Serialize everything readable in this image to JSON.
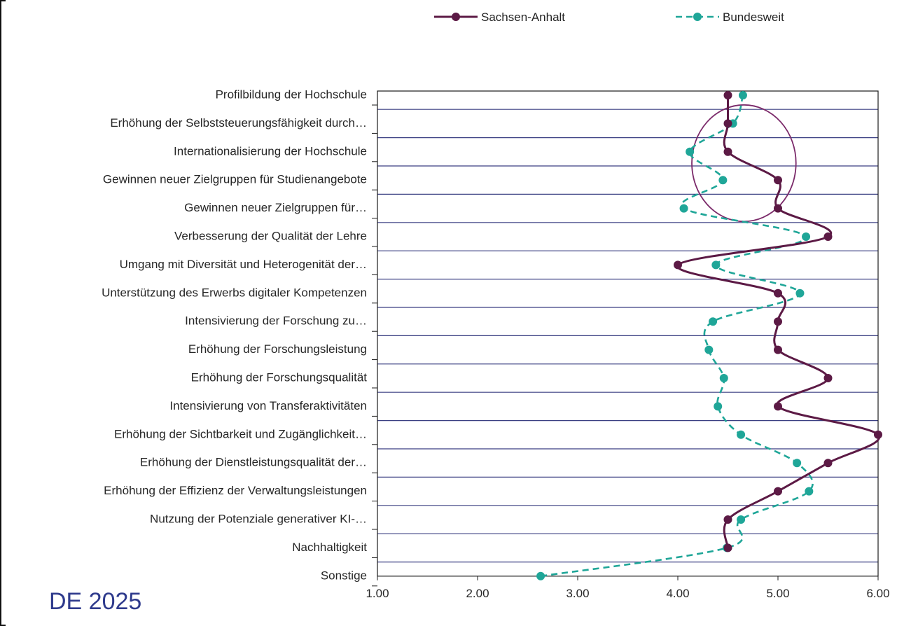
{
  "footer_text": "DE 2025",
  "chart_data": {
    "type": "line",
    "orientation": "horizontal",
    "title": "",
    "xlabel": "",
    "ylabel": "",
    "xlim": [
      1,
      6
    ],
    "x_ticks": [
      "1.00",
      "2.00",
      "3.00",
      "4.00",
      "5.00",
      "6.00"
    ],
    "grid": true,
    "legend_position": "top",
    "categories": [
      "Profilbildung der Hochschule",
      "Erhöhung der Selbststeuerungsfähigkeit durch…",
      "Internationalisierung der Hochschule",
      "Gewinnen neuer Zielgruppen für Studienangebote",
      "Gewinnen neuer Zielgruppen für…",
      "Verbesserung der Qualität der Lehre",
      "Umgang mit Diversität und Heterogenität der…",
      "Unterstützung des Erwerbs digitaler Kompetenzen",
      "Intensivierung der Forschung zu…",
      "Erhöhung der Forschungsleistung",
      "Erhöhung der Forschungsqualität",
      "Intensivierung von Transferaktivitäten",
      "Erhöhung der Sichtbarkeit und Zugänglichkeit…",
      "Erhöhung der Dienstleistungsqualität der…",
      "Erhöhung der Effizienz der Verwaltungsleistungen",
      "Nutzung der Potenziale generativer KI-…",
      "Nachhaltigkeit",
      "Sonstige"
    ],
    "series": [
      {
        "name": "Sachsen-Anhalt",
        "color": "#5c1a45",
        "style": "solid",
        "values": [
          4.5,
          4.5,
          4.5,
          5.0,
          5.0,
          5.5,
          4.0,
          5.0,
          5.0,
          5.0,
          5.5,
          5.0,
          6.0,
          5.5,
          5.0,
          4.5,
          4.5,
          null
        ]
      },
      {
        "name": "Bundesweit",
        "color": "#1fa698",
        "style": "dashed",
        "values": [
          4.65,
          4.55,
          4.12,
          4.45,
          4.06,
          5.28,
          4.38,
          5.22,
          4.35,
          4.31,
          4.46,
          4.4,
          4.63,
          5.19,
          5.31,
          4.63,
          4.49,
          2.63
        ]
      }
    ],
    "annotation": {
      "type": "ellipse",
      "color": "#7b2a6a"
    }
  }
}
